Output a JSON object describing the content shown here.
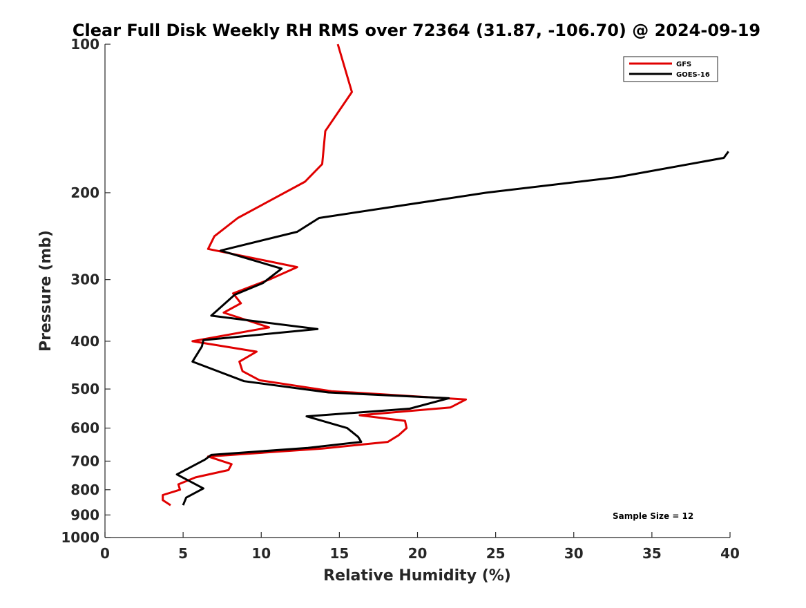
{
  "chart_data": {
    "type": "line",
    "title": "Clear Full Disk Weekly RH RMS over 72364 (31.87, -106.70) @ 2024-09-19",
    "xlabel": "Relative Humidity (%)",
    "ylabel": "Pressure (mb)",
    "xlim": [
      0,
      40
    ],
    "ylim": [
      100,
      1000
    ],
    "y_scale": "log",
    "y_reversed": true,
    "x_ticks": [
      "0",
      "5",
      "10",
      "15",
      "20",
      "25",
      "30",
      "35",
      "40"
    ],
    "y_ticks": [
      "100",
      "200",
      "300",
      "400",
      "500",
      "600",
      "700",
      "800",
      "900",
      "1000"
    ],
    "grid": false,
    "legend_position": "top-right",
    "annotation": "Sample Size = 12",
    "series": [
      {
        "name": "GFS",
        "color": "#e00000",
        "points": [
          [
            14.9,
            100
          ],
          [
            15.8,
            125
          ],
          [
            14.1,
            150
          ],
          [
            13.9,
            175
          ],
          [
            12.8,
            190
          ],
          [
            8.5,
            225
          ],
          [
            7.0,
            245
          ],
          [
            6.6,
            260
          ],
          [
            12.3,
            283
          ],
          [
            10.5,
            300
          ],
          [
            8.2,
            320
          ],
          [
            8.7,
            335
          ],
          [
            7.6,
            350
          ],
          [
            10.5,
            375
          ],
          [
            5.6,
            400
          ],
          [
            9.7,
            420
          ],
          [
            8.6,
            440
          ],
          [
            8.8,
            460
          ],
          [
            9.9,
            480
          ],
          [
            14.5,
            505
          ],
          [
            23.1,
            525
          ],
          [
            22.1,
            545
          ],
          [
            16.3,
            565
          ],
          [
            19.2,
            580
          ],
          [
            19.3,
            600
          ],
          [
            18.8,
            620
          ],
          [
            18.1,
            640
          ],
          [
            13.9,
            660
          ],
          [
            6.6,
            685
          ],
          [
            8.1,
            710
          ],
          [
            7.9,
            730
          ],
          [
            5.8,
            755
          ],
          [
            4.7,
            780
          ],
          [
            4.8,
            800
          ],
          [
            3.7,
            820
          ],
          [
            3.7,
            840
          ],
          [
            4.2,
            860
          ]
        ]
      },
      {
        "name": "GOES-16",
        "color": "#000000",
        "points": [
          [
            39.9,
            165
          ],
          [
            39.6,
            170
          ],
          [
            32.8,
            186
          ],
          [
            24.4,
            200
          ],
          [
            13.7,
            225
          ],
          [
            12.3,
            240
          ],
          [
            7.4,
            262
          ],
          [
            11.3,
            285
          ],
          [
            10.1,
            305
          ],
          [
            8.3,
            322
          ],
          [
            6.8,
            355
          ],
          [
            13.6,
            378
          ],
          [
            6.3,
            398
          ],
          [
            6.2,
            410
          ],
          [
            5.6,
            440
          ],
          [
            8.9,
            482
          ],
          [
            14.3,
            508
          ],
          [
            22.0,
            522
          ],
          [
            19.5,
            548
          ],
          [
            12.9,
            568
          ],
          [
            15.5,
            600
          ],
          [
            16.2,
            625
          ],
          [
            16.4,
            640
          ],
          [
            13.0,
            658
          ],
          [
            6.8,
            680
          ],
          [
            6.4,
            695
          ],
          [
            4.6,
            745
          ],
          [
            6.3,
            795
          ],
          [
            5.2,
            830
          ],
          [
            5.0,
            860
          ]
        ]
      }
    ]
  }
}
